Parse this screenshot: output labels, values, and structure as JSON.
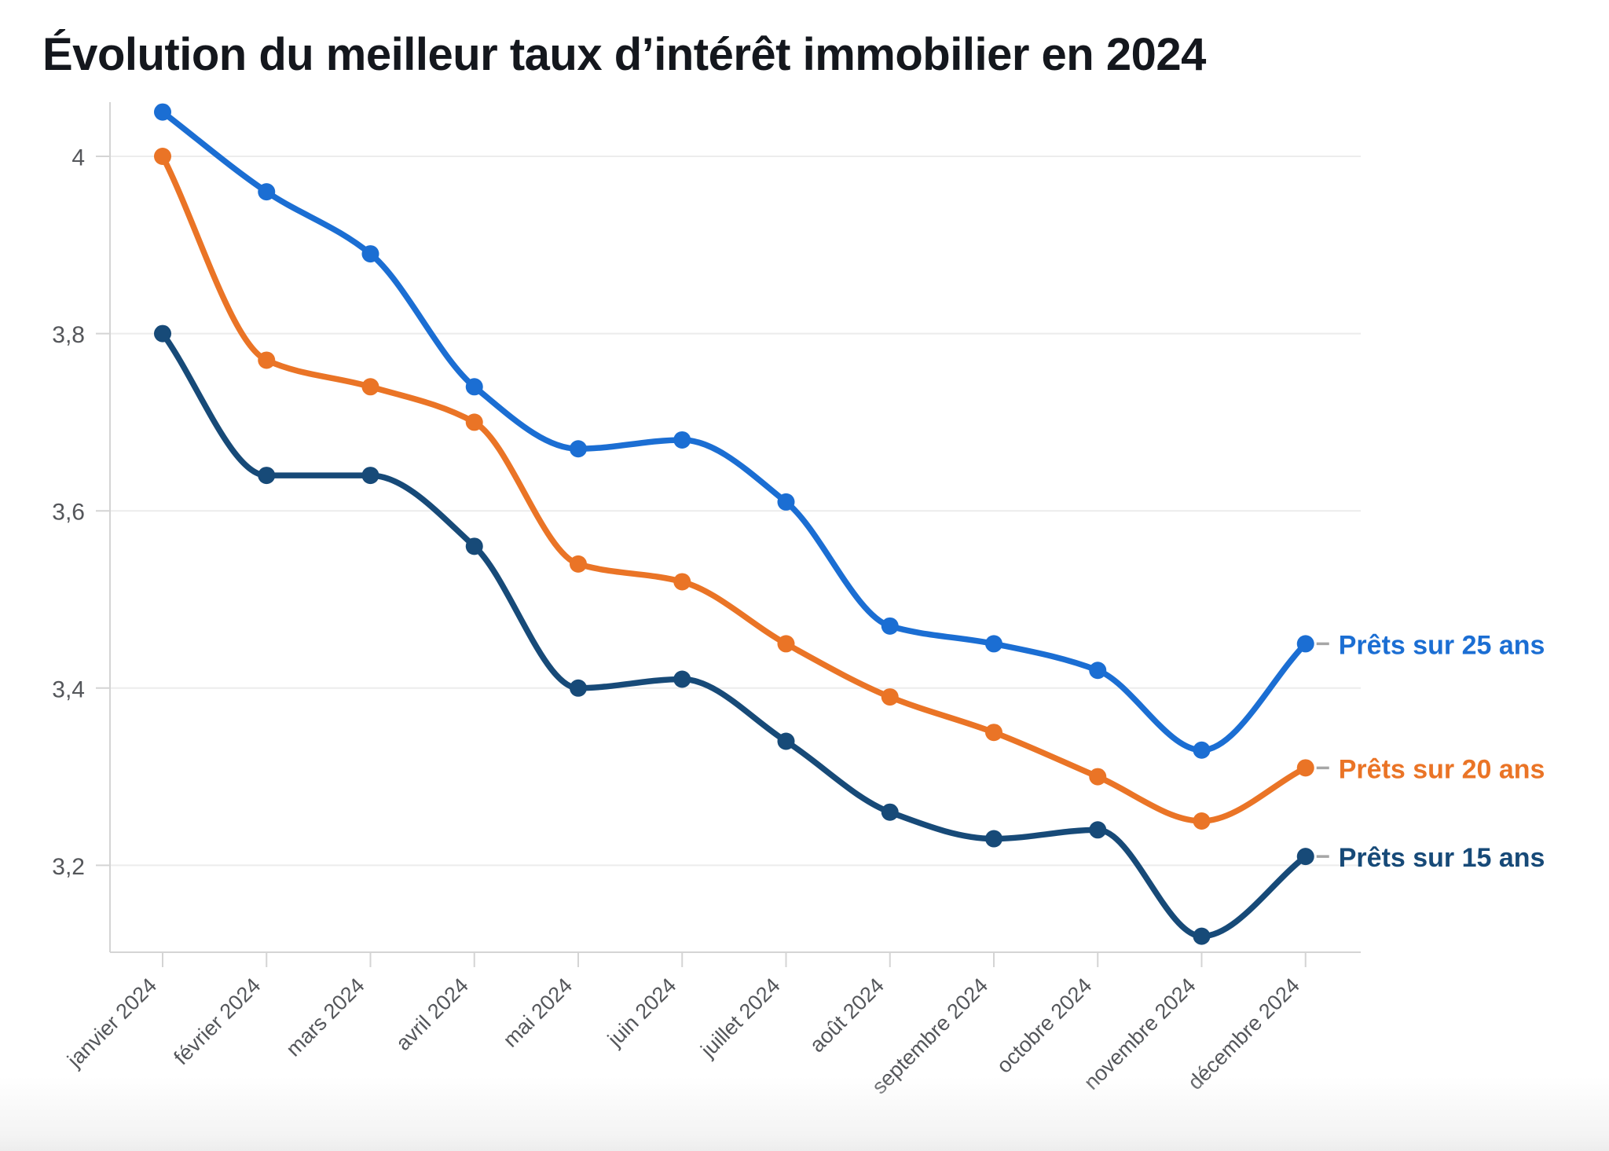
{
  "title": "Évolution du meilleur taux d’intérêt immobilier en 2024",
  "colors": {
    "title_text": "#14171d",
    "axis_text": "#54565a",
    "gridline": "#ececec",
    "axis_line": "#d4d4d4",
    "legend_dash": "#a6a6a6",
    "background": "#ffffff",
    "series_25ans": "#1b6ed3",
    "series_20ans": "#ea7426",
    "series_15ans": "#174a78"
  },
  "chart_data": {
    "type": "line",
    "title": "Évolution du meilleur taux d’intérêt immobilier en 2024",
    "xlabel": "",
    "ylabel": "",
    "categories": [
      "janvier 2024",
      "février 2024",
      "mars 2024",
      "avril 2024",
      "mai 2024",
      "juin 2024",
      "juillet 2024",
      "août 2024",
      "septembre 2024",
      "octobre 2024",
      "novembre 2024",
      "décembre 2024"
    ],
    "y_tick_labels": [
      "4",
      "3,8",
      "3,6",
      "3,4",
      "3,2"
    ],
    "y_tick_values": [
      4.0,
      3.8,
      3.6,
      3.4,
      3.2
    ],
    "ylim": [
      3.06,
      4.06
    ],
    "grid": true,
    "smooth": true,
    "point_markers": true,
    "legend_position": "right-of-last-point",
    "series": [
      {
        "name": "Prêts sur 25 ans",
        "color": "#1b6ed3",
        "values": [
          4.05,
          3.96,
          3.89,
          3.74,
          3.67,
          3.68,
          3.61,
          3.47,
          3.45,
          3.42,
          3.33,
          3.45
        ]
      },
      {
        "name": "Prêts sur 20 ans",
        "color": "#ea7426",
        "values": [
          4.0,
          3.77,
          3.74,
          3.7,
          3.54,
          3.52,
          3.45,
          3.39,
          3.35,
          3.3,
          3.25,
          3.31
        ]
      },
      {
        "name": "Prêts sur 15 ans",
        "color": "#174a78",
        "values": [
          3.8,
          3.64,
          3.64,
          3.56,
          3.4,
          3.41,
          3.34,
          3.26,
          3.23,
          3.24,
          3.12,
          3.21
        ]
      }
    ]
  }
}
